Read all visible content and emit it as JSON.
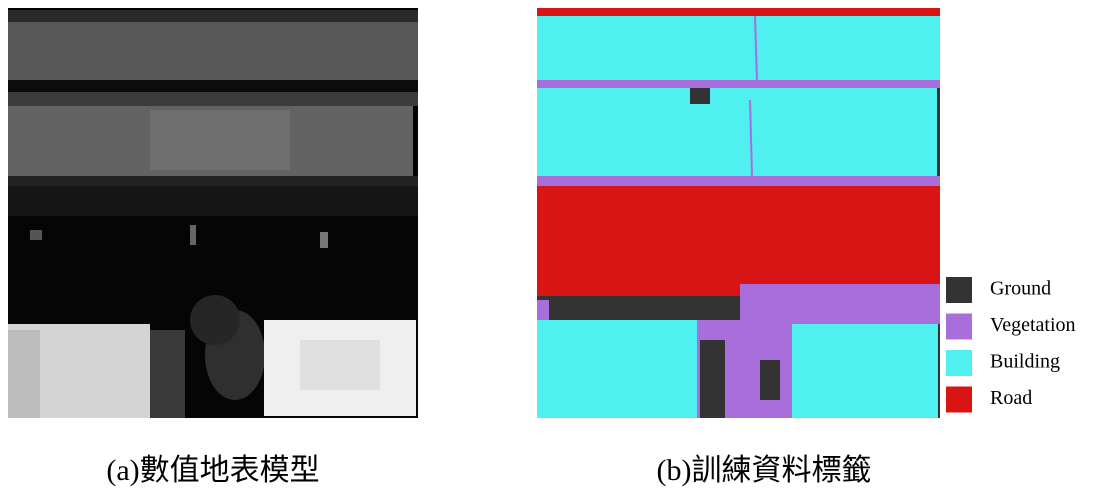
{
  "figure": {
    "panels": [
      {
        "caption": "(a)數值地表模型"
      },
      {
        "caption": "(b)訓練資料標籤"
      }
    ],
    "legend": [
      {
        "label": "Ground",
        "color": "#333333"
      },
      {
        "label": "Vegetation",
        "color": "#a86fdc"
      },
      {
        "label": "Building",
        "color": "#4ff0ef"
      },
      {
        "label": "Road",
        "color": "#d81414"
      }
    ]
  }
}
